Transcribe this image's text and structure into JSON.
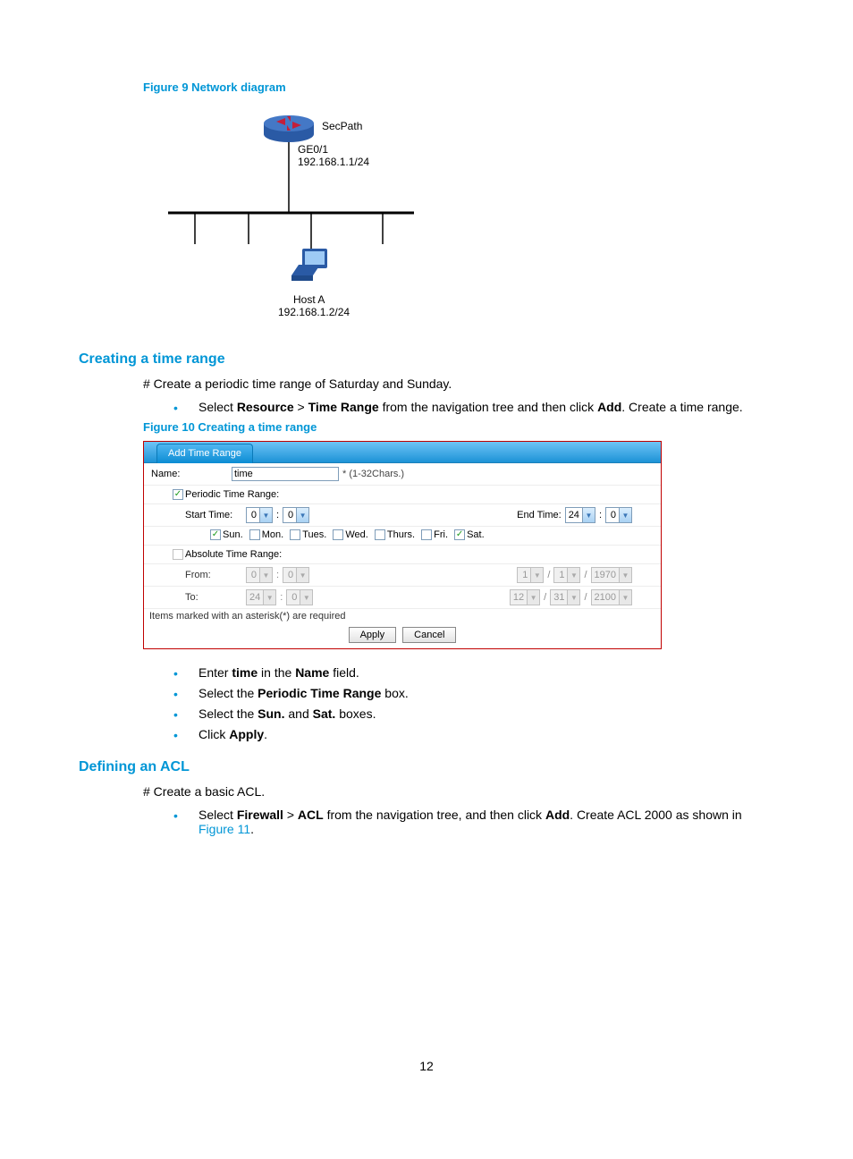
{
  "figure9": {
    "caption": "Figure 9 Network diagram",
    "secpath_label": "SecPath",
    "ge_label": "GE0/1",
    "ge_ip": "192.168.1.1/24",
    "host_label": "Host A",
    "host_ip": "192.168.1.2/24",
    "router_fill": "#2a5aa5",
    "router_accent": "#c41e3a",
    "host_fill": "#2a5aa5",
    "line_color": "#000000"
  },
  "section1": {
    "heading": "Creating a time range",
    "intro": "# Create a periodic time range of Saturday and Sunday.",
    "bullet1_pre": "Select ",
    "bullet1_b1": "Resource",
    "bullet1_mid": " > ",
    "bullet1_b2": "Time Range",
    "bullet1_post1": " from the navigation tree and then click ",
    "bullet1_b3": "Add",
    "bullet1_post2": ". Create a time range."
  },
  "figure10": {
    "caption": "Figure 10 Creating a time range",
    "tab": "Add Time Range",
    "name_label": "Name:",
    "name_value": "time",
    "name_hint": "* (1-32Chars.)",
    "periodic_label": "Periodic Time Range:",
    "periodic_checked": true,
    "start_label": "Start Time:",
    "start_h": "0",
    "start_m": "0",
    "end_label": "End Time:",
    "end_h": "24",
    "end_m": "0",
    "days": [
      {
        "label": "Sun.",
        "checked": true
      },
      {
        "label": "Mon.",
        "checked": false
      },
      {
        "label": "Tues.",
        "checked": false
      },
      {
        "label": "Wed.",
        "checked": false
      },
      {
        "label": "Thurs.",
        "checked": false
      },
      {
        "label": "Fri.",
        "checked": false
      },
      {
        "label": "Sat.",
        "checked": true
      }
    ],
    "absolute_label": "Absolute Time Range:",
    "absolute_checked": false,
    "from_label": "From:",
    "from_h": "0",
    "from_m": "0",
    "from_month": "1",
    "from_day": "1",
    "from_year": "1970",
    "to_label": "To:",
    "to_h": "24",
    "to_m": "0",
    "to_month": "12",
    "to_day": "31",
    "to_year": "2100",
    "sep_slash": "/",
    "sep_colon": ":",
    "required_note": "Items marked with an asterisk(*) are required",
    "apply_btn": "Apply",
    "cancel_btn": "Cancel",
    "border_color": "#c00000",
    "tab_color_top": "#6fc3f7",
    "tab_color_bottom": "#1c93d6"
  },
  "post_fig10": {
    "b1_pre": "Enter ",
    "b1_b1": "time",
    "b1_mid": " in the ",
    "b1_b2": "Name",
    "b1_post": " field.",
    "b2_pre": "Select the ",
    "b2_b": "Periodic Time Range",
    "b2_post": " box.",
    "b3_pre": "Select the ",
    "b3_b1": "Sun.",
    "b3_mid": " and ",
    "b3_b2": "Sat.",
    "b3_post": " boxes.",
    "b4_pre": "Click ",
    "b4_b": "Apply",
    "b4_post": "."
  },
  "section2": {
    "heading": "Defining an ACL",
    "intro": "# Create a basic ACL.",
    "b1_pre": "Select ",
    "b1_b1": "Firewall",
    "b1_mid": " > ",
    "b1_b2": "ACL",
    "b1_post1": " from the navigation tree, and then click ",
    "b1_b3": "Add",
    "b1_post2": ". Create ACL 2000 as shown in ",
    "b1_link": "Figure 11",
    "b1_post3": "."
  },
  "page_number": "12"
}
